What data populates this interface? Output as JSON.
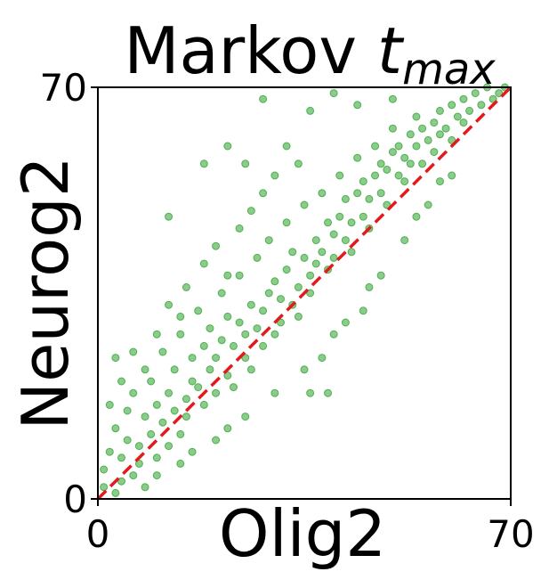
{
  "chart_data": {
    "type": "scatter",
    "title_main": "Markov ",
    "title_var": "t",
    "title_sub": "max",
    "xlabel": "Olig2",
    "ylabel": "Neurog2",
    "xlim": [
      0,
      70
    ],
    "ylim": [
      0,
      70
    ],
    "xticks": [
      "0",
      "70"
    ],
    "yticks": [
      "0",
      "70"
    ],
    "grid": false,
    "legend": "none",
    "point_color": "#2ca02c",
    "reference_line": {
      "style": "dashed",
      "color": "#e31a1c",
      "from": [
        0,
        0
      ],
      "to": [
        70,
        70
      ]
    },
    "series": [
      {
        "points": [
          [
            1,
            2
          ],
          [
            1,
            5
          ],
          [
            2,
            8
          ],
          [
            3,
            1
          ],
          [
            3,
            12
          ],
          [
            4,
            3
          ],
          [
            4,
            7
          ],
          [
            5,
            10
          ],
          [
            5,
            15
          ],
          [
            6,
            4
          ],
          [
            6,
            18
          ],
          [
            7,
            9
          ],
          [
            7,
            6
          ],
          [
            8,
            14
          ],
          [
            8,
            2
          ],
          [
            9,
            11
          ],
          [
            9,
            20
          ],
          [
            10,
            7
          ],
          [
            10,
            16
          ],
          [
            11,
            13
          ],
          [
            11,
            25
          ],
          [
            12,
            9
          ],
          [
            12,
            18
          ],
          [
            13,
            15
          ],
          [
            13,
            22
          ],
          [
            14,
            11
          ],
          [
            14,
            28
          ],
          [
            15,
            17
          ],
          [
            15,
            14
          ],
          [
            16,
            24
          ],
          [
            16,
            20
          ],
          [
            17,
            19
          ],
          [
            17,
            32
          ],
          [
            18,
            16
          ],
          [
            18,
            26
          ],
          [
            19,
            22
          ],
          [
            19,
            29
          ],
          [
            20,
            18
          ],
          [
            20,
            24
          ],
          [
            21,
            27
          ],
          [
            21,
            35
          ],
          [
            22,
            21
          ],
          [
            22,
            31
          ],
          [
            23,
            26
          ],
          [
            23,
            19
          ],
          [
            24,
            30
          ],
          [
            24,
            38
          ],
          [
            25,
            24
          ],
          [
            25,
            28
          ],
          [
            26,
            33
          ],
          [
            26,
            22
          ],
          [
            27,
            29
          ],
          [
            27,
            41
          ],
          [
            28,
            32
          ],
          [
            28,
            26
          ],
          [
            29,
            35
          ],
          [
            29,
            44
          ],
          [
            30,
            28
          ],
          [
            30,
            37
          ],
          [
            31,
            34
          ],
          [
            31,
            30
          ],
          [
            32,
            39
          ],
          [
            32,
            47
          ],
          [
            33,
            33
          ],
          [
            33,
            42
          ],
          [
            34,
            36
          ],
          [
            34,
            31
          ],
          [
            35,
            41
          ],
          [
            35,
            50
          ],
          [
            36,
            38
          ],
          [
            36,
            35
          ],
          [
            37,
            44
          ],
          [
            37,
            40
          ],
          [
            38,
            42
          ],
          [
            38,
            52
          ],
          [
            39,
            39
          ],
          [
            39,
            47
          ],
          [
            40,
            45
          ],
          [
            40,
            41
          ],
          [
            41,
            48
          ],
          [
            41,
            55
          ],
          [
            42,
            44
          ],
          [
            42,
            51
          ],
          [
            43,
            47
          ],
          [
            43,
            42
          ],
          [
            44,
            52
          ],
          [
            44,
            58
          ],
          [
            45,
            48
          ],
          [
            45,
            54
          ],
          [
            46,
            51
          ],
          [
            46,
            46
          ],
          [
            47,
            55
          ],
          [
            47,
            60
          ],
          [
            48,
            52
          ],
          [
            48,
            57
          ],
          [
            49,
            56
          ],
          [
            49,
            50
          ],
          [
            50,
            59
          ],
          [
            50,
            63
          ],
          [
            51,
            55
          ],
          [
            51,
            60
          ],
          [
            52,
            58
          ],
          [
            52,
            54
          ],
          [
            53,
            62
          ],
          [
            53,
            57
          ],
          [
            54,
            60
          ],
          [
            54,
            65
          ],
          [
            55,
            57
          ],
          [
            55,
            63
          ],
          [
            56,
            61
          ],
          [
            57,
            64
          ],
          [
            57,
            59
          ],
          [
            58,
            66
          ],
          [
            58,
            62
          ],
          [
            59,
            63
          ],
          [
            60,
            67
          ],
          [
            60,
            61
          ],
          [
            61,
            65
          ],
          [
            62,
            68
          ],
          [
            62,
            64
          ],
          [
            63,
            66
          ],
          [
            64,
            69
          ],
          [
            65,
            67
          ],
          [
            66,
            70
          ],
          [
            67,
            68
          ],
          [
            68,
            69
          ],
          [
            69,
            70
          ],
          [
            10,
            28
          ],
          [
            12,
            33
          ],
          [
            14,
            31
          ],
          [
            18,
            40
          ],
          [
            20,
            43
          ],
          [
            22,
            38
          ],
          [
            24,
            46
          ],
          [
            26,
            49
          ],
          [
            15,
            36
          ],
          [
            8,
            22
          ],
          [
            6,
            25
          ],
          [
            4,
            20
          ],
          [
            2,
            16
          ],
          [
            3,
            24
          ],
          [
            28,
            52
          ],
          [
            30,
            55
          ],
          [
            32,
            60
          ],
          [
            34,
            57
          ],
          [
            25,
            57
          ],
          [
            12,
            48
          ],
          [
            18,
            57
          ],
          [
            22,
            60
          ],
          [
            28,
            68
          ],
          [
            36,
            66
          ],
          [
            40,
            69
          ],
          [
            44,
            67
          ],
          [
            50,
            68
          ],
          [
            30,
            18
          ],
          [
            35,
            22
          ],
          [
            40,
            28
          ],
          [
            45,
            32
          ],
          [
            48,
            38
          ],
          [
            52,
            44
          ],
          [
            56,
            50
          ],
          [
            60,
            55
          ],
          [
            38,
            24
          ],
          [
            42,
            30
          ],
          [
            46,
            36
          ],
          [
            54,
            48
          ],
          [
            58,
            54
          ],
          [
            36,
            18
          ],
          [
            39,
            18
          ],
          [
            20,
            10
          ],
          [
            25,
            14
          ],
          [
            16,
            8
          ],
          [
            22,
            12
          ],
          [
            10,
            4
          ],
          [
            14,
            6
          ]
        ]
      }
    ]
  }
}
